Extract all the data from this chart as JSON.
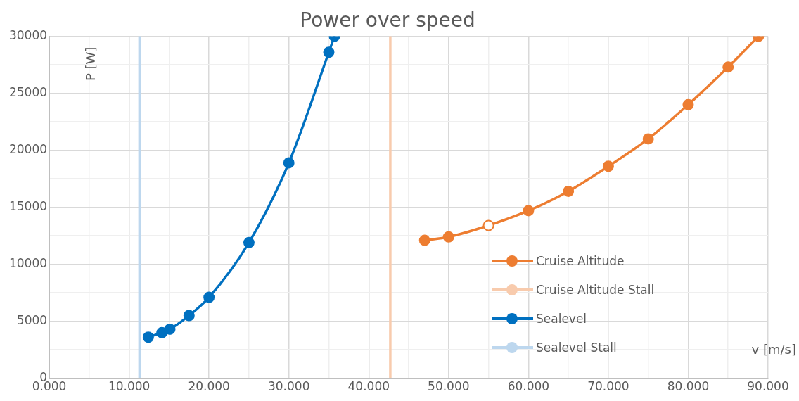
{
  "chart_data": {
    "type": "line",
    "title": "Power over speed",
    "xlabel": "v [m/s]",
    "ylabel": "P [W]",
    "xlim": [
      0,
      90
    ],
    "ylim": [
      0,
      30000
    ],
    "xticks": [
      {
        "value": 0,
        "label": "0.000"
      },
      {
        "value": 5,
        "label": null
      },
      {
        "value": 10,
        "label": "10.000"
      },
      {
        "value": 15,
        "label": null
      },
      {
        "value": 20,
        "label": "20.000"
      },
      {
        "value": 25,
        "label": null
      },
      {
        "value": 30,
        "label": "30.000"
      },
      {
        "value": 35,
        "label": null
      },
      {
        "value": 40,
        "label": "40.000"
      },
      {
        "value": 45,
        "label": null
      },
      {
        "value": 50,
        "label": "50.000"
      },
      {
        "value": 55,
        "label": null
      },
      {
        "value": 60,
        "label": "60.000"
      },
      {
        "value": 65,
        "label": null
      },
      {
        "value": 70,
        "label": "70.000"
      },
      {
        "value": 75,
        "label": null
      },
      {
        "value": 80,
        "label": "80.000"
      },
      {
        "value": 85,
        "label": null
      },
      {
        "value": 90,
        "label": "90.000"
      }
    ],
    "yticks": [
      0,
      {
        "value": 2500,
        "label": null
      },
      5000,
      {
        "value": 7500,
        "label": null
      },
      10000,
      {
        "value": 12500,
        "label": null
      },
      15000,
      {
        "value": 17500,
        "label": null
      },
      20000,
      {
        "value": 22500,
        "label": null
      },
      25000,
      {
        "value": 27500,
        "label": null
      },
      30000
    ],
    "grid": true,
    "legend": "bottom right",
    "marker": "circle",
    "line_style": "solid",
    "series": [
      {
        "name": "Cruise Altitude",
        "color": "#ed7d31",
        "x": [
          47,
          50,
          55,
          60,
          65,
          70,
          75,
          80,
          85,
          88.8
        ],
        "values": [
          12100,
          12400,
          13400,
          14700,
          16400,
          18600,
          21000,
          24000,
          27300,
          30000
        ],
        "colors": [
          "#ed7d31",
          "#ed7d31",
          "#ffffff",
          "#ed7d31",
          "#ed7d31",
          "#ed7d31",
          "#ed7d31",
          "#ed7d31",
          "#ed7d31",
          "#ed7d31"
        ]
      },
      {
        "name": "Cruise Altitude Stall",
        "color": "#f8cbad",
        "x": [
          42.7,
          42.7
        ],
        "values": [
          0,
          30000
        ],
        "marker": "none"
      },
      {
        "name": "Sealevel",
        "color": "#0070c0",
        "x": [
          12.4,
          14.1,
          15.1,
          17.5,
          20,
          25,
          30,
          35,
          35.7
        ],
        "values": [
          3600,
          4000,
          4300,
          5500,
          7100,
          11900,
          18900,
          28600,
          30000
        ]
      },
      {
        "name": "Sealevel Stall",
        "color": "#bdd7ee",
        "x": [
          11.3,
          11.3
        ],
        "values": [
          0,
          30000
        ],
        "marker": "none"
      }
    ]
  }
}
